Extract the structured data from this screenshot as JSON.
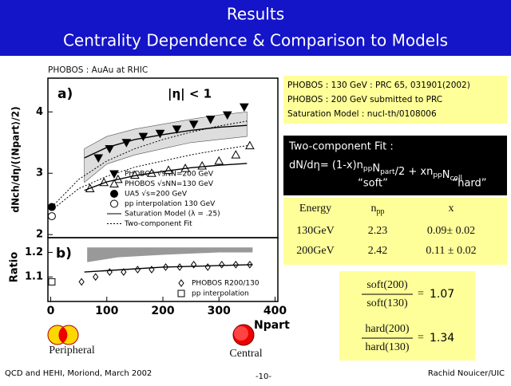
{
  "header": {
    "title": "Results",
    "subtitle": "Centrality Dependence  & Comparison to Models"
  },
  "chart_data": [
    {
      "type": "scatter",
      "title": "PHOBOS : AuAu at RHIC",
      "panel_label": "a)",
      "annotation": "|η| < 1",
      "ylabel": "dNch/dη/(⟨Npart⟩/2)",
      "xlim": [
        -5,
        405
      ],
      "ylim": [
        1.95,
        4.55
      ],
      "yticks": [
        2,
        3,
        4
      ],
      "band": {
        "x": [
          60,
          100,
          150,
          200,
          250,
          300,
          350
        ],
        "lower": [
          2.85,
          3.15,
          3.3,
          3.4,
          3.5,
          3.55,
          3.6
        ],
        "upper": [
          3.4,
          3.6,
          3.72,
          3.8,
          3.88,
          3.95,
          4.0
        ]
      },
      "series": [
        {
          "name": "PHOBOS √sNN=200 GeV",
          "marker": "tri-down-filled",
          "x": [
            85,
            105,
            135,
            165,
            195,
            225,
            255,
            285,
            315,
            345
          ],
          "values": [
            3.25,
            3.4,
            3.5,
            3.6,
            3.65,
            3.72,
            3.8,
            3.88,
            3.95,
            4.08
          ]
        },
        {
          "name": "PHOBOS √sNN=130 GeV",
          "marker": "tri-up-open",
          "x": [
            70,
            95,
            120,
            150,
            180,
            210,
            240,
            270,
            300,
            330,
            355
          ],
          "values": [
            2.75,
            2.85,
            2.9,
            2.97,
            3.0,
            3.05,
            3.08,
            3.12,
            3.2,
            3.3,
            3.45
          ]
        },
        {
          "name": "UA5 √s=200 GeV",
          "marker": "circle-filled",
          "x": [
            2
          ],
          "values": [
            2.45
          ]
        },
        {
          "name": "pp interpolation 130 GeV",
          "marker": "circle-open",
          "x": [
            2
          ],
          "values": [
            2.3
          ]
        },
        {
          "name": "Saturation Model (λ = .25)",
          "line": "solid",
          "x": [
            60,
            100,
            150,
            200,
            250,
            300,
            350
          ],
          "values": [
            3.25,
            3.42,
            3.55,
            3.63,
            3.7,
            3.75,
            3.78
          ]
        },
        {
          "name": "Two-component Fit",
          "line": "dotted",
          "x": [
            2,
            50,
            100,
            150,
            200,
            250,
            300,
            350
          ],
          "values": [
            2.4,
            2.75,
            2.95,
            3.1,
            3.2,
            3.3,
            3.38,
            3.45
          ]
        },
        {
          "line": "solid",
          "x": [
            60,
            100,
            150,
            200,
            250,
            300,
            350
          ],
          "values": [
            2.72,
            2.86,
            2.96,
            3.03,
            3.09,
            3.13,
            3.16
          ]
        },
        {
          "line": "dotted",
          "x": [
            2,
            50,
            100,
            150,
            200,
            250,
            300,
            350
          ],
          "values": [
            2.45,
            2.9,
            3.2,
            3.4,
            3.55,
            3.67,
            3.77,
            3.85
          ]
        }
      ]
    },
    {
      "type": "scatter",
      "panel_label": "b)",
      "ylabel": "Ratio",
      "xlabel": "Npart",
      "xlim": [
        -5,
        405
      ],
      "ylim": [
        1.0,
        1.26
      ],
      "yticks": [
        1.1,
        1.2
      ],
      "xticks": [
        0,
        100,
        200,
        300,
        400
      ],
      "band": {
        "x": [
          65,
          120,
          200,
          300,
          360
        ],
        "lower": [
          1.16,
          1.18,
          1.19,
          1.2,
          1.2
        ],
        "upper": [
          1.22,
          1.22,
          1.22,
          1.22,
          1.22
        ]
      },
      "series": [
        {
          "name": "PHOBOS R200/130",
          "marker": "diamond-open",
          "x": [
            55,
            80,
            105,
            130,
            155,
            180,
            205,
            230,
            255,
            280,
            305,
            330,
            355
          ],
          "values": [
            1.08,
            1.1,
            1.12,
            1.12,
            1.13,
            1.13,
            1.14,
            1.14,
            1.15,
            1.14,
            1.15,
            1.15,
            1.15
          ]
        },
        {
          "name": "pp interpolation",
          "marker": "square-open",
          "x": [
            2
          ],
          "values": [
            1.08
          ]
        },
        {
          "line": "solid",
          "x": [
            60,
            200,
            360
          ],
          "values": [
            1.12,
            1.14,
            1.15
          ]
        }
      ]
    }
  ],
  "refs": [
    "PHOBOS : 130 GeV : PRC  65, 031901(2002)",
    "PHOBOS : 200 GeV submitted to PRC",
    "Saturation Model : nucl-th/0108006"
  ],
  "fit": {
    "title": "Two-component Fit :",
    "formula": [
      {
        "t": "dN/dη=  (1-x)n"
      },
      {
        "sub": "pp"
      },
      {
        "t": "N"
      },
      {
        "sub": "part"
      },
      {
        "t": "/2   +   xn"
      },
      {
        "sub": "pp"
      },
      {
        "t": "N"
      },
      {
        "sub": "coll"
      }
    ],
    "soft": "“soft”",
    "hard": "“hard”"
  },
  "table": {
    "header": [
      "Energy",
      {
        "main": "n",
        "sub": "pp"
      },
      "x"
    ],
    "rows": [
      [
        "130GeV",
        2.23,
        "0.09± 0.02"
      ],
      [
        "200GeV",
        2.42,
        "0.11 ± 0.02"
      ]
    ]
  },
  "ratios": [
    {
      "num": "soft(200)",
      "den": "soft(130)",
      "sign": "=",
      "value": 1.07
    },
    {
      "num": "hard(200)",
      "den": "hard(130)",
      "sign": "=",
      "value": 1.34
    }
  ],
  "collisions": [
    "Peripheral",
    "Central"
  ],
  "footer": {
    "left": "QCD and HEHI, Moriond, March 2002",
    "center": "-10-",
    "right": "Rachid Nouicer/UIC"
  }
}
